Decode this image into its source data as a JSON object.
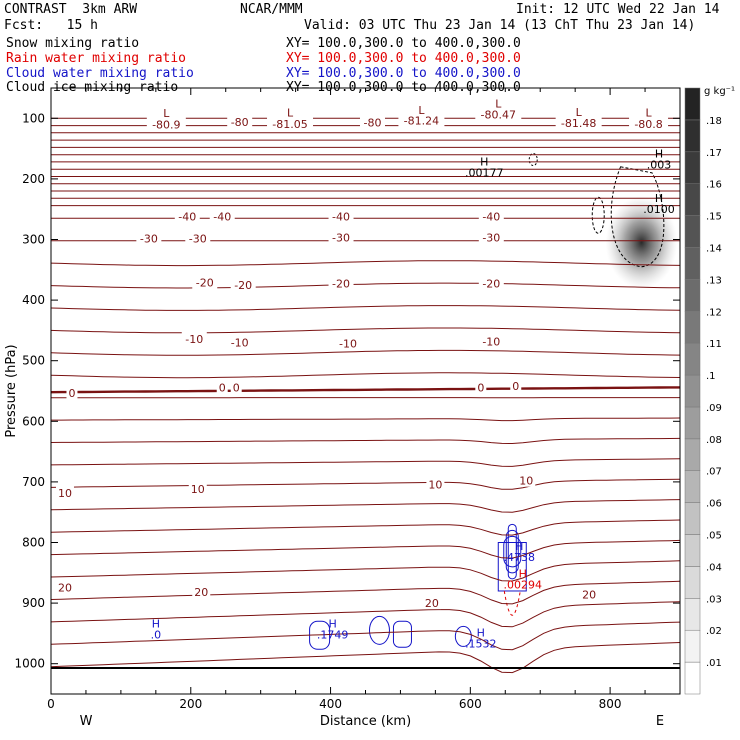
{
  "header": {
    "title": "CONTRAST  3km ARW",
    "center": "NCAR/MMM",
    "init": "Init: 12 UTC Wed 22 Jan 14",
    "fcst": "Fcst:   15 h",
    "valid": "Valid: 03 UTC Thu 23 Jan 14 (13 ChT Thu 23 Jan 14)"
  },
  "legend": [
    {
      "label": "Snow mixing ratio",
      "xy": "XY= 100.0,300.0 to 400.0,300.0",
      "color": "#000000"
    },
    {
      "label": "Rain water mixing ratio",
      "xy": "XY= 100.0,300.0 to 400.0,300.0",
      "color": "#e00000"
    },
    {
      "label": "Cloud water mixing ratio",
      "xy": "XY= 100.0,300.0 to 400.0,300.0",
      "color": "#1414c8"
    },
    {
      "label": "Cloud ice mixing ratio",
      "xy": "XY= 100.0,300.0 to 400.0,300.0",
      "color": "#000000"
    }
  ],
  "colors": {
    "temp": "#7a1212",
    "snow": "#000000",
    "rain": "#e00000",
    "cloud": "#1414c8"
  },
  "chart_data": {
    "type": "cross-section",
    "xlabel": "Distance (km)",
    "ylabel": "Pressure (hPa)",
    "xlim": [
      0,
      900
    ],
    "ylim": [
      1050,
      50
    ],
    "x_ticks": [
      0,
      200,
      400,
      600,
      800
    ],
    "y_ticks": [
      100,
      200,
      300,
      400,
      500,
      600,
      700,
      800,
      900,
      1000
    ],
    "x_end_labels": {
      "left": "W",
      "right": "E"
    },
    "colorbar": {
      "unit": "g kg⁻¹",
      "levels": [
        ".01",
        ".02",
        ".03",
        ".04",
        ".05",
        ".06",
        ".07",
        ".08",
        ".09",
        ".1",
        ".11",
        ".12",
        ".13",
        ".14",
        ".15",
        ".16",
        ".17",
        ".18"
      ]
    },
    "isotherm_labels": [
      {
        "text": "-80.9",
        "x": 165,
        "p": 110
      },
      {
        "text": "-80",
        "x": 270,
        "p": 106
      },
      {
        "text": "-81.05",
        "x": 342,
        "p": 109
      },
      {
        "text": "-80",
        "x": 460,
        "p": 107
      },
      {
        "text": "-81.24",
        "x": 530,
        "p": 104
      },
      {
        "text": "-80.47",
        "x": 640,
        "p": 94
      },
      {
        "text": "-81.48",
        "x": 755,
        "p": 108
      },
      {
        "text": "-80.8",
        "x": 855,
        "p": 109
      },
      {
        "text": "-40",
        "x": 195,
        "p": 262
      },
      {
        "text": "-40",
        "x": 245,
        "p": 262
      },
      {
        "text": "-40",
        "x": 415,
        "p": 262
      },
      {
        "text": "-40",
        "x": 630,
        "p": 262
      },
      {
        "text": "-30",
        "x": 140,
        "p": 298
      },
      {
        "text": "-30",
        "x": 210,
        "p": 298
      },
      {
        "text": "-30",
        "x": 415,
        "p": 297
      },
      {
        "text": "-30",
        "x": 630,
        "p": 297
      },
      {
        "text": "-20",
        "x": 220,
        "p": 371
      },
      {
        "text": "-20",
        "x": 275,
        "p": 375
      },
      {
        "text": "-20",
        "x": 415,
        "p": 373
      },
      {
        "text": "-20",
        "x": 630,
        "p": 373
      },
      {
        "text": "-10",
        "x": 205,
        "p": 464
      },
      {
        "text": "-10",
        "x": 270,
        "p": 470
      },
      {
        "text": "-10",
        "x": 425,
        "p": 472
      },
      {
        "text": "-10",
        "x": 630,
        "p": 468
      },
      {
        "text": "0",
        "x": 30,
        "p": 553
      },
      {
        "text": "0",
        "x": 245,
        "p": 544
      },
      {
        "text": "0",
        "x": 265,
        "p": 544
      },
      {
        "text": "0",
        "x": 615,
        "p": 544
      },
      {
        "text": "0",
        "x": 665,
        "p": 542
      },
      {
        "text": "10",
        "x": 20,
        "p": 718
      },
      {
        "text": "10",
        "x": 210,
        "p": 712
      },
      {
        "text": "10",
        "x": 550,
        "p": 704
      },
      {
        "text": "10",
        "x": 680,
        "p": 698
      },
      {
        "text": "20",
        "x": 20,
        "p": 874
      },
      {
        "text": "20",
        "x": 215,
        "p": 882
      },
      {
        "text": "20",
        "x": 545,
        "p": 900
      },
      {
        "text": "20",
        "x": 770,
        "p": 886
      }
    ],
    "hl_markers": [
      {
        "type": "L",
        "x": 165,
        "p": 98
      },
      {
        "type": "L",
        "x": 342,
        "p": 97
      },
      {
        "type": "L",
        "x": 530,
        "p": 93
      },
      {
        "type": "L",
        "x": 640,
        "p": 82
      },
      {
        "type": "L",
        "x": 755,
        "p": 96
      },
      {
        "type": "L",
        "x": 855,
        "p": 97
      },
      {
        "type": "H",
        "x": 870,
        "p": 165,
        "value": ".003",
        "color": "#000000"
      },
      {
        "type": "H",
        "x": 620,
        "p": 178,
        "value": ".00177",
        "color": "#000000"
      },
      {
        "type": "H",
        "x": 870,
        "p": 238,
        "value": ".0100",
        "color": "#000000"
      },
      {
        "type": "H",
        "x": 670,
        "p": 812,
        "value": ".4738",
        "color": "#1414c8"
      },
      {
        "type": "H",
        "x": 675,
        "p": 858,
        "value": ".00294",
        "color": "#e00000"
      },
      {
        "type": "H",
        "x": 150,
        "p": 940,
        "value": ".0",
        "color": "#1414c8"
      },
      {
        "type": "H",
        "x": 403,
        "p": 940,
        "value": ".1749",
        "color": "#1414c8"
      },
      {
        "type": "H",
        "x": 615,
        "p": 955,
        "value": ".1532",
        "color": "#1414c8"
      }
    ]
  }
}
